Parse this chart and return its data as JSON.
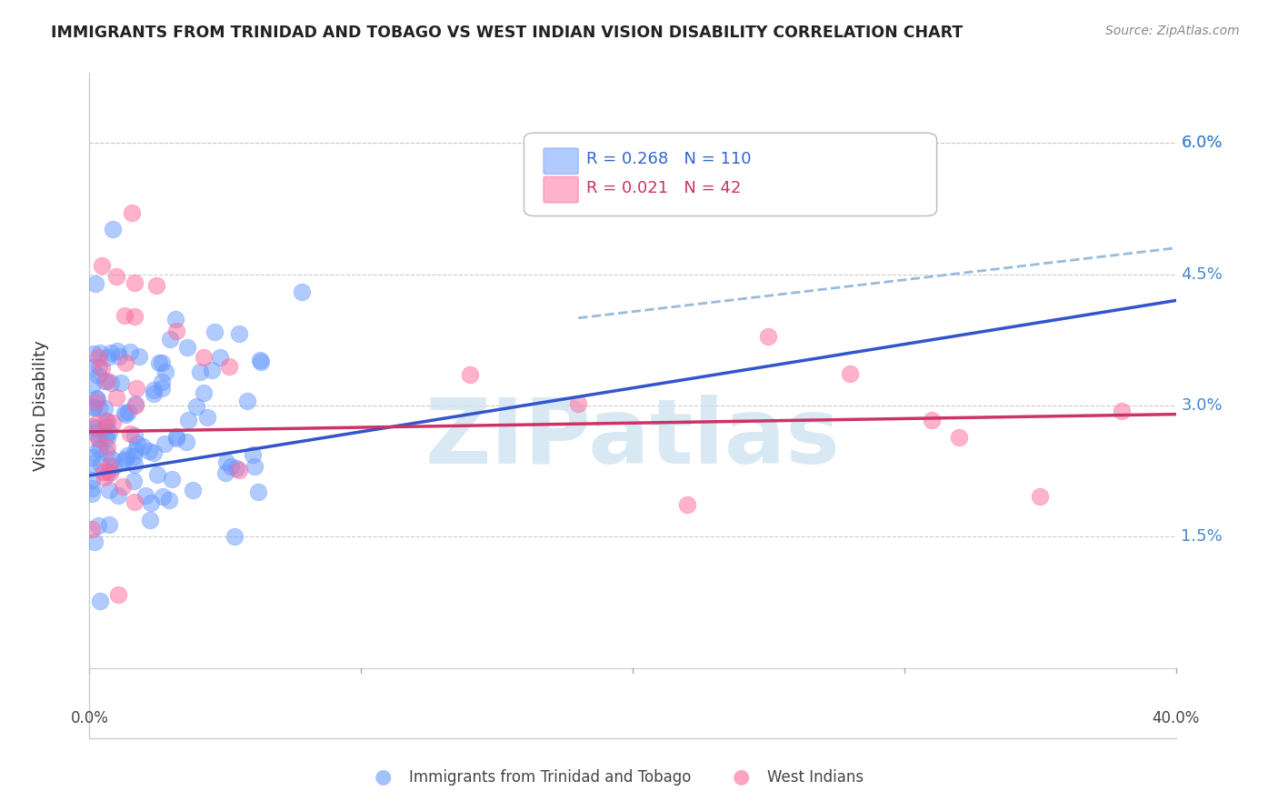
{
  "title": "IMMIGRANTS FROM TRINIDAD AND TOBAGO VS WEST INDIAN VISION DISABILITY CORRELATION CHART",
  "source": "Source: ZipAtlas.com",
  "ylabel": "Vision Disability",
  "ytick_labels": [
    "6.0%",
    "4.5%",
    "3.0%",
    "1.5%"
  ],
  "ytick_values": [
    0.06,
    0.045,
    0.03,
    0.015
  ],
  "xlim": [
    0.0,
    0.4
  ],
  "ylim": [
    -0.008,
    0.068
  ],
  "blue_color": "#6699FF",
  "pink_color": "#FF6699",
  "blue_line_color": "#3355CC",
  "pink_line_color": "#CC3366",
  "dashed_line_color": "#99BBDD",
  "watermark": "ZIPatlas",
  "legend_R_blue": "0.268",
  "legend_N_blue": "110",
  "legend_R_pink": "0.021",
  "legend_N_pink": "42",
  "legend_label_blue": "Immigrants from Trinidad and Tobago",
  "legend_label_pink": "West Indians",
  "blue_line_x": [
    0.0,
    0.4
  ],
  "blue_line_y": [
    0.022,
    0.042
  ],
  "pink_line_x": [
    0.0,
    0.4
  ],
  "pink_line_y": [
    0.027,
    0.029
  ],
  "dashed_line_x": [
    0.18,
    0.4
  ],
  "dashed_line_y": [
    0.04,
    0.048
  ]
}
